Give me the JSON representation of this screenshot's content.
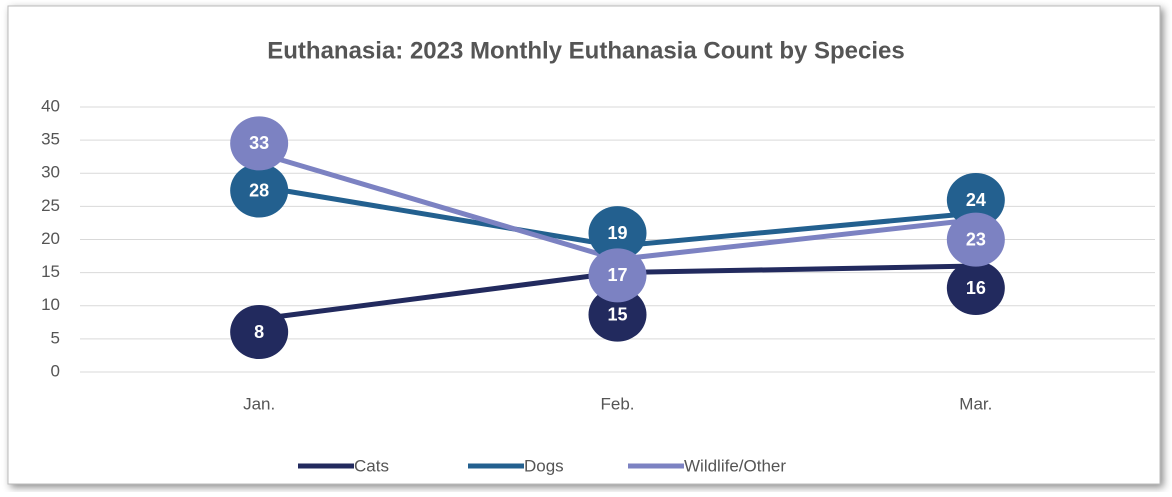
{
  "chart_data": {
    "type": "line",
    "title": "Euthanasia: 2023 Monthly Euthanasia Count by Species",
    "categories": [
      "Jan.",
      "Feb.",
      "Mar."
    ],
    "series": [
      {
        "name": "Cats",
        "color": "#222a5e",
        "values": [
          8,
          15,
          16
        ]
      },
      {
        "name": "Dogs",
        "color": "#23608f",
        "values": [
          28,
          19,
          24
        ]
      },
      {
        "name": "Wildlife/Other",
        "color": "#7c82c2",
        "values": [
          33,
          17,
          23
        ]
      }
    ],
    "ylim": [
      0,
      40
    ],
    "yticks": [
      0,
      5,
      10,
      15,
      20,
      25,
      30,
      35,
      40
    ],
    "grid": true,
    "legend": "bottom"
  }
}
